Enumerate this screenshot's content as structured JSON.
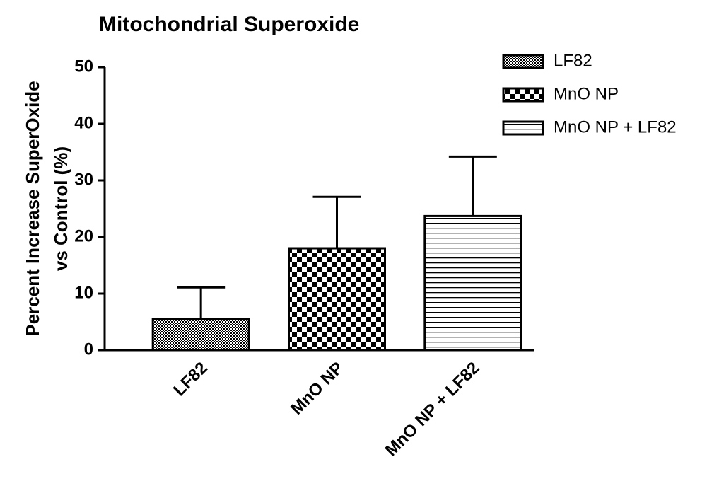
{
  "chart_data": {
    "type": "bar",
    "title": "Mitochondrial Superoxide",
    "ylabel": [
      "Percent Increase SuperOxide",
      "vs Control (%)"
    ],
    "categories": [
      "LF82",
      "MnO NP",
      "MnO NP + LF82"
    ],
    "series": [
      {
        "name": "LF82",
        "color": "#000000",
        "pattern": "fine-dots",
        "values": [
          5.5,
          null,
          null
        ],
        "errors": [
          5.6,
          null,
          null
        ]
      },
      {
        "name": "MnO NP",
        "color": "#000000",
        "pattern": "checker",
        "values": [
          null,
          18,
          null
        ],
        "errors": [
          null,
          9.1,
          null
        ]
      },
      {
        "name": "MnO NP + LF82",
        "color": "#000000",
        "pattern": "hlines",
        "values": [
          null,
          null,
          23.7
        ],
        "errors": [
          null,
          null,
          10.5
        ]
      }
    ],
    "ylim": [
      0,
      50
    ],
    "yticks": [
      0,
      10,
      20,
      30,
      40,
      50
    ],
    "grid": false,
    "legend": "top-right"
  }
}
